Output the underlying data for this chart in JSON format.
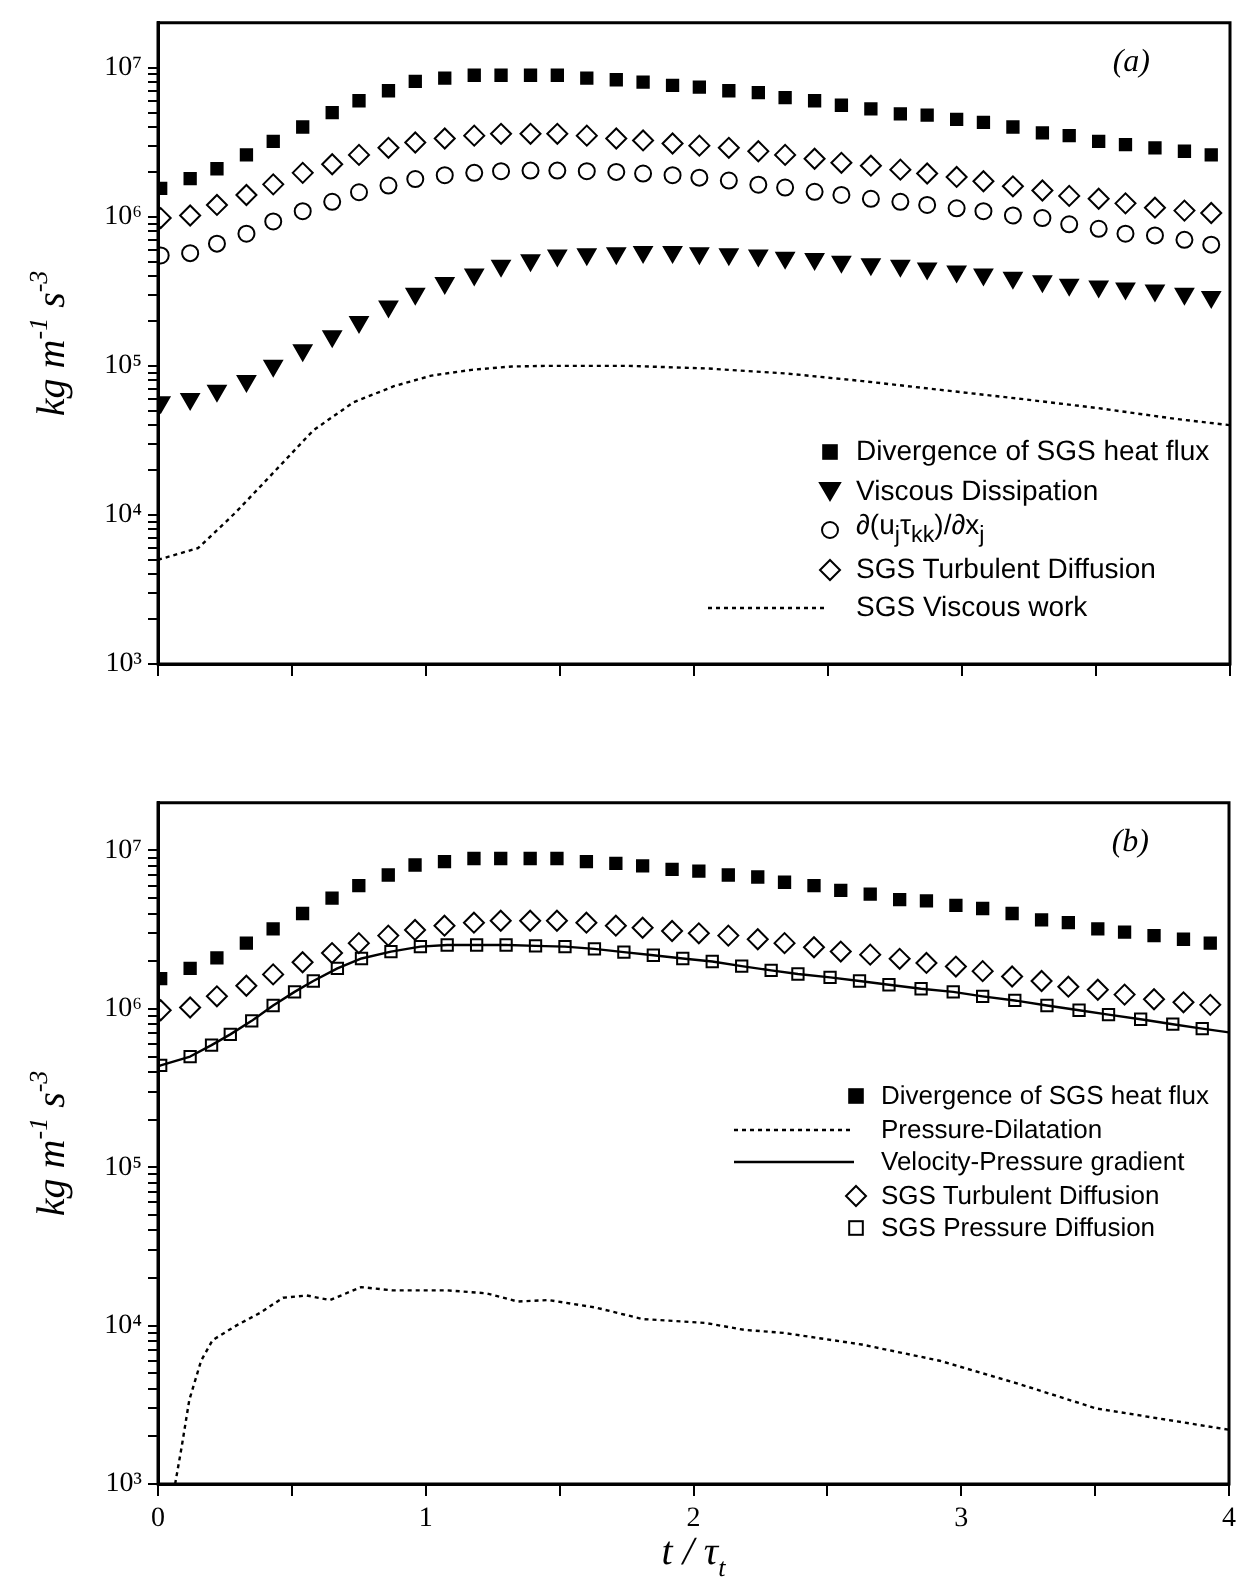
{
  "chart_data": [
    {
      "type": "scatter",
      "ylabel": "kg m$^{-1}$ s$^{-3}$",
      "annotations": [
        "(a)"
      ],
      "legend": "bottom right",
      "log": "y",
      "grid": false,
      "tick_labels": "y",
      "xlim": [
        0,
        4
      ],
      "xticks": [
        0,
        {
          "value": 0.5,
          "label": null
        },
        1,
        {
          "value": 1.5,
          "label": null
        },
        2,
        {
          "value": 2.5,
          "label": null
        },
        3,
        {
          "value": 3.5,
          "label": null
        },
        4
      ],
      "ylim": [
        1000,
        20000000.0
      ],
      "yticks": [
        {
          "value": 1000,
          "label": "10³"
        },
        {
          "value": 2000,
          "label": null
        },
        {
          "value": 3000,
          "label": null
        },
        {
          "value": 4000,
          "label": null
        },
        {
          "value": 5000,
          "label": null
        },
        {
          "value": 6000,
          "label": null
        },
        {
          "value": 7000,
          "label": null
        },
        {
          "value": 8000,
          "label": null
        },
        {
          "value": 9000,
          "label": null
        },
        {
          "value": 10000,
          "label": "10⁴"
        },
        {
          "value": 20000,
          "label": null
        },
        {
          "value": 30000,
          "label": null
        },
        {
          "value": 40000,
          "label": null
        },
        {
          "value": 50000,
          "label": null
        },
        {
          "value": 60000,
          "label": null
        },
        {
          "value": 70000,
          "label": null
        },
        {
          "value": 80000,
          "label": null
        },
        {
          "value": 90000,
          "label": null
        },
        {
          "value": 100000,
          "label": "10⁵"
        },
        {
          "value": 200000,
          "label": null
        },
        {
          "value": 300000,
          "label": null
        },
        {
          "value": 400000,
          "label": null
        },
        {
          "value": 500000,
          "label": null
        },
        {
          "value": 600000,
          "label": null
        },
        {
          "value": 700000,
          "label": null
        },
        {
          "value": 800000,
          "label": null
        },
        {
          "value": 900000,
          "label": null
        },
        {
          "value": 1000000,
          "label": "10⁶"
        },
        {
          "value": 2000000,
          "label": null
        },
        {
          "value": 3000000,
          "label": null
        },
        {
          "value": 4000000,
          "label": null
        },
        {
          "value": 5000000,
          "label": null
        },
        {
          "value": 6000000,
          "label": null
        },
        {
          "value": 7000000,
          "label": null
        },
        {
          "value": 8000000,
          "label": null
        },
        {
          "value": 9000000,
          "label": null
        },
        {
          "value": 10000000,
          "label": "10⁷"
        }
      ],
      "x": [
        0.01,
        0.12,
        0.22,
        0.33,
        0.43,
        0.54,
        0.65,
        0.75,
        0.86,
        0.96,
        1.07,
        1.18,
        1.28,
        1.39,
        1.49,
        1.6,
        1.71,
        1.81,
        1.92,
        2.02,
        2.13,
        2.24,
        2.34,
        2.45,
        2.55,
        2.66,
        2.77,
        2.87,
        2.98,
        3.08,
        3.19,
        3.3,
        3.4,
        3.51,
        3.61,
        3.72,
        3.83,
        3.93
      ],
      "series": [
        {
          "name": "Divergence of SGS heat flux",
          "color": "#000000",
          "marker": "square",
          "values": [
            1550000.0,
            1800000.0,
            2100000.0,
            2600000.0,
            3200000.0,
            4000000.0,
            5000000.0,
            6000000.0,
            7000000.0,
            8100000.0,
            8500000.0,
            8900000.0,
            8900000.0,
            8900000.0,
            8900000.0,
            8500000.0,
            8300000.0,
            8000000.0,
            7600000.0,
            7400000.0,
            7000000.0,
            6800000.0,
            6300000.0,
            6000000.0,
            5600000.0,
            5300000.0,
            4900000.0,
            4800000.0,
            4500000.0,
            4300000.0,
            4000000.0,
            3650000.0,
            3500000.0,
            3200000.0,
            3050000.0,
            2900000.0,
            2750000.0,
            2600000.0
          ]
        },
        {
          "name": "Viscous Dissipation",
          "color": "#000000",
          "marker": "triangle",
          "values": [
            57000.0,
            60000.0,
            68000.0,
            79000.0,
            100000.0,
            127000.0,
            158000.0,
            197000.0,
            250000.0,
            305000.0,
            360000.0,
            410000.0,
            470000.0,
            510000.0,
            550000.0,
            560000.0,
            570000.0,
            580000.0,
            580000.0,
            570000.0,
            560000.0,
            550000.0,
            530000.0,
            520000.0,
            500000.0,
            480000.0,
            470000.0,
            450000.0,
            430000.0,
            410000.0,
            390000.0,
            370000.0,
            350000.0,
            340000.0,
            330000.0,
            320000.0,
            305000.0,
            290000.0
          ]
        },
        {
          "name": "∂(u$_{j}$τ$_{kk}$)/∂x$_{j}$",
          "color": "#000000",
          "marker": "circle",
          "values": [
            550000.0,
            570000.0,
            660000.0,
            770000.0,
            930000.0,
            1090000.0,
            1260000.0,
            1460000.0,
            1620000.0,
            1790000.0,
            1900000.0,
            1970000.0,
            2020000.0,
            2040000.0,
            2040000.0,
            2020000.0,
            2000000.0,
            1950000.0,
            1900000.0,
            1830000.0,
            1750000.0,
            1640000.0,
            1570000.0,
            1470000.0,
            1400000.0,
            1320000.0,
            1260000.0,
            1200000.0,
            1140000.0,
            1090000.0,
            1020000.0,
            980000.0,
            890000.0,
            830000.0,
            770000.0,
            750000.0,
            700000.0,
            650000.0
          ]
        },
        {
          "name": "SGS Turbulent Diffusion",
          "color": "#000000",
          "marker": "diamond",
          "values": [
            980000.0,
            1020000.0,
            1200000.0,
            1400000.0,
            1650000.0,
            1970000.0,
            2250000.0,
            2600000.0,
            2900000.0,
            3150000.0,
            3350000.0,
            3500000.0,
            3600000.0,
            3600000.0,
            3600000.0,
            3500000.0,
            3350000.0,
            3250000.0,
            3100000.0,
            3000000.0,
            2900000.0,
            2750000.0,
            2600000.0,
            2450000.0,
            2300000.0,
            2200000.0,
            2070000.0,
            1950000.0,
            1850000.0,
            1730000.0,
            1600000.0,
            1500000.0,
            1380000.0,
            1320000.0,
            1230000.0,
            1150000.0,
            1100000.0,
            1060000.0
          ]
        },
        {
          "name": "SGS Viscous work",
          "type": "line",
          "color": "#000000",
          "marker": "none",
          "line_style": "dotted",
          "x": [
            0,
            0.15,
            0.29,
            0.44,
            0.58,
            0.73,
            0.88,
            1.02,
            1.17,
            1.32,
            1.46,
            1.61,
            1.75,
            1.9,
            2.05,
            2.34,
            2.63,
            2.92,
            3.22,
            3.51,
            3.8,
            4.0
          ],
          "values": [
            5000.0,
            6000.0,
            10400.0,
            20000.0,
            37000.0,
            57000.0,
            73000.0,
            86000.0,
            94000.0,
            99000.0,
            100000.0,
            100000.0,
            100000.0,
            98000.0,
            96000.0,
            89000.0,
            79000.0,
            69000.0,
            60000.0,
            52000.0,
            44000.0,
            40000.0
          ]
        }
      ]
    },
    {
      "type": "scatter",
      "xlabel": "t / τ$_{t}$",
      "ylabel": "kg m$^{-1}$ s$^{-3}$",
      "annotations": [
        "(b)"
      ],
      "legend": "right",
      "log": "y",
      "grid": false,
      "xlim": [
        0,
        4
      ],
      "xticks": [
        0,
        {
          "value": 0.5,
          "label": null
        },
        1,
        {
          "value": 1.5,
          "label": null
        },
        2,
        {
          "value": 2.5,
          "label": null
        },
        3,
        {
          "value": 3.5,
          "label": null
        },
        4
      ],
      "ylim": [
        1000,
        20000000.0
      ],
      "yticks": [
        {
          "value": 1000,
          "label": "10³"
        },
        {
          "value": 2000,
          "label": null
        },
        {
          "value": 3000,
          "label": null
        },
        {
          "value": 4000,
          "label": null
        },
        {
          "value": 5000,
          "label": null
        },
        {
          "value": 6000,
          "label": null
        },
        {
          "value": 7000,
          "label": null
        },
        {
          "value": 8000,
          "label": null
        },
        {
          "value": 9000,
          "label": null
        },
        {
          "value": 10000,
          "label": "10⁴"
        },
        {
          "value": 20000,
          "label": null
        },
        {
          "value": 30000,
          "label": null
        },
        {
          "value": 40000,
          "label": null
        },
        {
          "value": 50000,
          "label": null
        },
        {
          "value": 60000,
          "label": null
        },
        {
          "value": 70000,
          "label": null
        },
        {
          "value": 80000,
          "label": null
        },
        {
          "value": 90000,
          "label": null
        },
        {
          "value": 100000,
          "label": "10⁵"
        },
        {
          "value": 200000,
          "label": null
        },
        {
          "value": 300000,
          "label": null
        },
        {
          "value": 400000,
          "label": null
        },
        {
          "value": 500000,
          "label": null
        },
        {
          "value": 600000,
          "label": null
        },
        {
          "value": 700000,
          "label": null
        },
        {
          "value": 800000,
          "label": null
        },
        {
          "value": 900000,
          "label": null
        },
        {
          "value": 1000000,
          "label": "10⁶"
        },
        {
          "value": 2000000,
          "label": null
        },
        {
          "value": 3000000,
          "label": null
        },
        {
          "value": 4000000,
          "label": null
        },
        {
          "value": 5000000,
          "label": null
        },
        {
          "value": 6000000,
          "label": null
        },
        {
          "value": 7000000,
          "label": null
        },
        {
          "value": 8000000,
          "label": null
        },
        {
          "value": 9000000,
          "label": null
        },
        {
          "value": 10000000,
          "label": "10⁷"
        }
      ],
      "x": [
        0.01,
        0.12,
        0.22,
        0.33,
        0.43,
        0.54,
        0.65,
        0.75,
        0.86,
        0.96,
        1.07,
        1.18,
        1.28,
        1.39,
        1.49,
        1.6,
        1.71,
        1.81,
        1.92,
        2.02,
        2.13,
        2.24,
        2.34,
        2.45,
        2.55,
        2.66,
        2.77,
        2.87,
        2.98,
        3.08,
        3.19,
        3.3,
        3.4,
        3.51,
        3.61,
        3.72,
        3.83,
        3.93
      ],
      "series": [
        {
          "name": "Divergence of SGS heat flux",
          "color": "#000000",
          "marker": "square",
          "values": [
            1550000.0,
            1800000.0,
            2100000.0,
            2600000.0,
            3200000.0,
            4000000.0,
            5000000.0,
            6000000.0,
            7000000.0,
            8100000.0,
            8500000.0,
            8900000.0,
            8900000.0,
            8900000.0,
            8900000.0,
            8500000.0,
            8300000.0,
            8000000.0,
            7600000.0,
            7400000.0,
            7000000.0,
            6800000.0,
            6300000.0,
            6000000.0,
            5600000.0,
            5300000.0,
            4900000.0,
            4800000.0,
            4500000.0,
            4300000.0,
            4000000.0,
            3650000.0,
            3500000.0,
            3200000.0,
            3050000.0,
            2900000.0,
            2750000.0,
            2600000.0
          ]
        },
        {
          "name": "Pressure-Dilatation",
          "type": "line",
          "color": "#000000",
          "marker": "none",
          "line_style": "dotted",
          "x": [
            0.064,
            0.088,
            0.117,
            0.161,
            0.204,
            0.292,
            0.38,
            0.467,
            0.555,
            0.642,
            0.759,
            0.876,
            1.08,
            1.226,
            1.343,
            1.46,
            1.635,
            1.81,
            2.044,
            2.19,
            2.336,
            2.628,
            2.92,
            3.212,
            3.504,
            3.796,
            4.0
          ],
          "values": [
            1000,
            1700,
            3400,
            6000,
            8100,
            10000.0,
            12000.0,
            15000.0,
            15500.0,
            14500.0,
            17500.0,
            16700.0,
            16700.0,
            16000.0,
            14200.0,
            14500.0,
            13000.0,
            11000.0,
            10400.0,
            9400.0,
            9000.0,
            7600.0,
            6000.0,
            4300.0,
            3000.0,
            2500.0,
            2200.0
          ]
        },
        {
          "name": "Velocity-Pressure gradient",
          "type": "line",
          "color": "#000000",
          "marker": "none",
          "line_style": "solid",
          "x": [
            0,
            0.01,
            0.12,
            0.2,
            0.27,
            0.35,
            0.43,
            0.51,
            0.58,
            0.67,
            0.76,
            0.87,
            0.98,
            1.08,
            1.19,
            1.3,
            1.41,
            1.52,
            1.63,
            1.74,
            1.85,
            1.96,
            2.07,
            2.18,
            2.29,
            2.39,
            2.51,
            2.62,
            2.73,
            2.85,
            2.97,
            3.08,
            3.2,
            3.32,
            3.44,
            3.55,
            3.67,
            3.79,
            3.9,
            4.0
          ],
          "values": [
            430000.0,
            440000.0,
            500000.0,
            590000.0,
            690000.0,
            840000.0,
            1050000.0,
            1280000.0,
            1500000.0,
            1800000.0,
            2080000.0,
            2300000.0,
            2470000.0,
            2530000.0,
            2530000.0,
            2530000.0,
            2500000.0,
            2470000.0,
            2390000.0,
            2280000.0,
            2180000.0,
            2080000.0,
            1990000.0,
            1860000.0,
            1750000.0,
            1660000.0,
            1580000.0,
            1500000.0,
            1420000.0,
            1340000.0,
            1280000.0,
            1200000.0,
            1130000.0,
            1050000.0,
            980000.0,
            920000.0,
            860000.0,
            800000.0,
            750000.0,
            710000.0
          ]
        },
        {
          "name": "SGS Turbulent Diffusion",
          "color": "#000000",
          "marker": "diamond",
          "values": [
            980000.0,
            1020000.0,
            1200000.0,
            1400000.0,
            1650000.0,
            1970000.0,
            2250000.0,
            2600000.0,
            2900000.0,
            3150000.0,
            3350000.0,
            3500000.0,
            3600000.0,
            3600000.0,
            3600000.0,
            3500000.0,
            3350000.0,
            3250000.0,
            3100000.0,
            3000000.0,
            2900000.0,
            2750000.0,
            2600000.0,
            2450000.0,
            2300000.0,
            2200000.0,
            2070000.0,
            1950000.0,
            1850000.0,
            1730000.0,
            1600000.0,
            1500000.0,
            1380000.0,
            1320000.0,
            1230000.0,
            1150000.0,
            1100000.0,
            1060000.0
          ]
        },
        {
          "name": "SGS Pressure Diffusion",
          "color": "#000000",
          "marker": "square",
          "x": [
            0.01,
            0.12,
            0.2,
            0.27,
            0.35,
            0.43,
            0.51,
            0.58,
            0.67,
            0.76,
            0.87,
            0.98,
            1.08,
            1.19,
            1.3,
            1.41,
            1.52,
            1.63,
            1.74,
            1.85,
            1.96,
            2.07,
            2.18,
            2.29,
            2.39,
            2.51,
            2.62,
            2.73,
            2.85,
            2.97,
            3.08,
            3.2,
            3.32,
            3.44,
            3.55,
            3.67,
            3.79,
            3.9
          ],
          "values": [
            440000.0,
            500000.0,
            590000.0,
            690000.0,
            840000.0,
            1050000.0,
            1280000.0,
            1500000.0,
            1800000.0,
            2080000.0,
            2300000.0,
            2470000.0,
            2530000.0,
            2530000.0,
            2530000.0,
            2500000.0,
            2470000.0,
            2390000.0,
            2280000.0,
            2180000.0,
            2080000.0,
            1990000.0,
            1860000.0,
            1750000.0,
            1660000.0,
            1580000.0,
            1500000.0,
            1420000.0,
            1340000.0,
            1280000.0,
            1200000.0,
            1130000.0,
            1050000.0,
            980000.0,
            920000.0,
            860000.0,
            800000.0,
            750000.0
          ]
        }
      ]
    }
  ]
}
